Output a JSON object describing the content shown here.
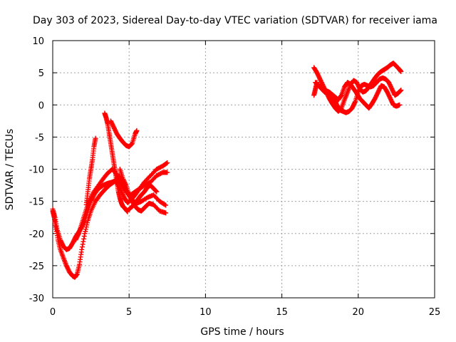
{
  "chart_data": {
    "type": "scatter",
    "title": "Day 303 of 2023, Sidereal Day-to-day VTEC variation (SDTVAR) for receiver iama",
    "xlabel": "GPS time / hours",
    "ylabel": "SDTVAR / TECUs",
    "xlim": [
      0,
      25
    ],
    "ylim": [
      -30,
      10
    ],
    "xticks": [
      0,
      5,
      10,
      15,
      20,
      25
    ],
    "yticks": [
      -30,
      -25,
      -20,
      -15,
      -10,
      -5,
      0,
      5,
      10
    ],
    "grid": true,
    "marker": "+",
    "color": "#ff0000",
    "series": [
      {
        "x": [
          0.0,
          0.1,
          0.2,
          0.35,
          0.5,
          0.7,
          0.9,
          1.1,
          1.3,
          1.45,
          1.6,
          1.75,
          1.9,
          2.1,
          2.3,
          2.5,
          2.8,
          3.1,
          3.4,
          3.7,
          4.0,
          4.2,
          4.35,
          4.5,
          4.7,
          4.9,
          5.2,
          5.5,
          5.8,
          6.2,
          6.6,
          7.0,
          7.4
        ],
        "y": [
          -16.5,
          -17.5,
          -19,
          -21,
          -22.5,
          -23.8,
          -25,
          -26,
          -26.6,
          -26.8,
          -26.3,
          -24.8,
          -22.5,
          -20,
          -18,
          -16.5,
          -15,
          -14,
          -13.2,
          -12.5,
          -12.0,
          -11.5,
          -11.0,
          -11.8,
          -12.8,
          -13.8,
          -14.8,
          -15.3,
          -15.0,
          -14.4,
          -14.0,
          -15.0,
          -15.6
        ]
      },
      {
        "x": [
          0.0,
          0.15,
          0.3,
          0.5,
          0.7,
          0.9,
          1.1,
          1.3,
          1.5,
          1.7,
          1.9,
          2.1,
          2.3,
          2.5,
          2.7,
          3.0,
          3.3,
          3.6,
          3.9,
          4.1,
          4.3,
          4.5,
          4.7,
          4.9,
          5.1,
          5.4,
          5.7,
          6.0,
          6.4,
          6.8,
          7.2,
          7.5
        ],
        "y": [
          -16.2,
          -17.5,
          -19.5,
          -21.0,
          -22.0,
          -22.5,
          -22.3,
          -21.5,
          -20.5,
          -19.8,
          -19.0,
          -18.0,
          -16.5,
          -15.0,
          -14.0,
          -13.0,
          -12.5,
          -12.2,
          -12.0,
          -11.8,
          -12.5,
          -13.5,
          -14.5,
          -15.2,
          -14.8,
          -14.0,
          -13.0,
          -12.0,
          -11.0,
          -10.0,
          -9.5,
          -9.0
        ]
      },
      {
        "x": [
          1.5,
          1.7,
          1.9,
          2.1,
          2.3,
          2.5,
          2.7,
          3.0,
          3.3,
          3.6,
          3.9,
          4.1,
          4.3,
          4.5,
          4.8,
          5.1,
          5.4,
          5.7,
          6.0,
          6.4,
          6.8,
          7.2,
          7.5
        ],
        "y": [
          -21.0,
          -20.0,
          -18.5,
          -17.0,
          -15.5,
          -14.5,
          -13.5,
          -12.5,
          -11.5,
          -10.6,
          -10.0,
          -10.5,
          -11.5,
          -12.5,
          -13.5,
          -14.0,
          -13.5,
          -13.0,
          -12.5,
          -12.0,
          -11.0,
          -10.5,
          -10.5
        ]
      },
      {
        "x": [
          2.2,
          2.3,
          2.4,
          2.5,
          2.6,
          2.7,
          2.8
        ],
        "y": [
          -15.5,
          -13.5,
          -11.5,
          -10.0,
          -8.5,
          -6.5,
          -5.2
        ]
      },
      {
        "x": [
          3.4,
          3.5,
          3.6,
          3.7,
          3.8,
          3.9,
          4.0,
          4.1,
          4.2,
          4.3,
          4.4,
          4.5,
          4.6,
          4.7,
          4.8,
          4.9
        ],
        "y": [
          -1.3,
          -2.0,
          -3.0,
          -4.5,
          -6.0,
          -7.5,
          -9.0,
          -10.5,
          -12.0,
          -13.5,
          -14.5,
          -15.3,
          -15.8,
          -16.0,
          -16.3,
          -16.6
        ]
      },
      {
        "x": [
          4.4,
          4.6,
          4.8,
          5.0,
          5.2,
          5.4,
          5.6,
          5.8,
          6.0,
          6.3,
          6.6,
          7.0,
          7.4
        ],
        "y": [
          -10.0,
          -11.5,
          -12.5,
          -14.0,
          -15.0,
          -15.8,
          -16.3,
          -16.5,
          -16.0,
          -15.3,
          -15.5,
          -16.5,
          -16.8
        ]
      },
      {
        "x": [
          3.8,
          4.0,
          4.2,
          4.4,
          4.6,
          4.8,
          5.0,
          5.2,
          5.4,
          5.5
        ],
        "y": [
          -2.5,
          -3.5,
          -4.5,
          -5.2,
          -5.8,
          -6.3,
          -6.5,
          -6.0,
          -4.5,
          -4.0
        ]
      },
      {
        "x": [
          5.0,
          5.2,
          5.4,
          5.6,
          5.8,
          6.0,
          6.2,
          6.4,
          6.6,
          6.8
        ],
        "y": [
          -16.2,
          -15.8,
          -15.3,
          -14.6,
          -14.0,
          -13.5,
          -12.8,
          -12.5,
          -13.0,
          -13.5
        ]
      },
      {
        "x": [
          17.1,
          17.3,
          17.5,
          17.7,
          17.9,
          18.1,
          18.3,
          18.5,
          18.7,
          18.9,
          19.1,
          19.3,
          19.5,
          19.7,
          19.9,
          20.1,
          20.3,
          20.5,
          20.7,
          20.9,
          21.1,
          21.3,
          21.5,
          21.7,
          21.9,
          22.1,
          22.3,
          22.5,
          22.7,
          22.8
        ],
        "y": [
          5.8,
          5.0,
          4.0,
          3.0,
          2.0,
          1.0,
          0.2,
          -0.5,
          -1.0,
          -0.5,
          0.8,
          2.0,
          3.2,
          3.8,
          3.5,
          2.5,
          2.0,
          2.2,
          2.8,
          3.5,
          4.2,
          4.8,
          5.2,
          5.5,
          5.8,
          6.2,
          6.5,
          6.0,
          5.5,
          5.2
        ]
      },
      {
        "x": [
          17.2,
          17.4,
          17.6,
          17.8,
          18.0,
          18.2,
          18.4,
          18.6,
          18.8,
          19.0,
          19.2,
          19.4,
          19.6,
          19.8,
          20.0,
          20.2,
          20.4,
          20.6,
          20.8,
          21.0,
          21.2,
          21.4,
          21.6,
          21.8,
          22.0,
          22.2,
          22.4,
          22.6,
          22.8
        ],
        "y": [
          3.5,
          3.0,
          2.5,
          2.0,
          1.8,
          1.5,
          1.0,
          0.0,
          -0.8,
          -1.0,
          -1.2,
          -1.0,
          -0.5,
          0.5,
          2.0,
          3.0,
          3.2,
          3.0,
          2.8,
          3.0,
          3.5,
          4.0,
          4.2,
          4.0,
          3.5,
          2.5,
          1.5,
          1.8,
          2.3
        ]
      },
      {
        "x": [
          17.5,
          17.7,
          17.9,
          18.1,
          18.3,
          18.5,
          18.7,
          18.9,
          19.1,
          19.3,
          19.5,
          19.7,
          19.9,
          20.1,
          20.3,
          20.5,
          20.7,
          20.9,
          21.1,
          21.3,
          21.5,
          21.7,
          21.9,
          22.1,
          22.3,
          22.5,
          22.7
        ],
        "y": [
          3.0,
          2.6,
          2.2,
          2.0,
          1.6,
          1.2,
          0.8,
          1.5,
          2.8,
          3.5,
          3.2,
          2.5,
          1.8,
          1.0,
          0.5,
          0.0,
          -0.5,
          0.2,
          1.0,
          2.0,
          3.0,
          2.8,
          2.0,
          1.0,
          0.0,
          -0.2,
          0.0
        ]
      },
      {
        "x": [
          17.1,
          17.2,
          17.3
        ],
        "y": [
          1.5,
          2.5,
          3.5
        ]
      }
    ]
  }
}
